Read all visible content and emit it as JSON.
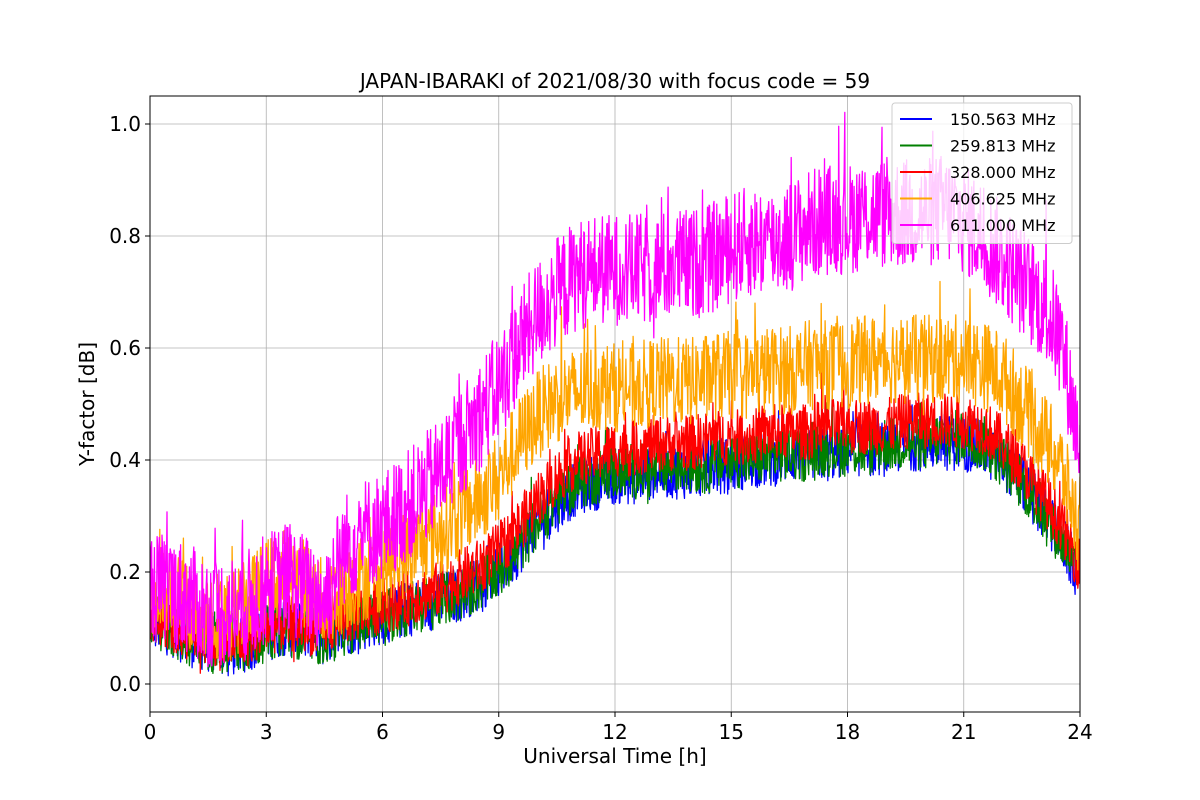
{
  "chart_data": {
    "type": "line",
    "title": "JAPAN-IBARAKI of 2021/08/30 with focus code = 59",
    "xlabel": "Universal Time [h]",
    "ylabel": "Y-factor [dB]",
    "xlim": [
      0,
      24
    ],
    "ylim": [
      -0.05,
      1.05
    ],
    "xticks": [
      0,
      3,
      6,
      9,
      12,
      15,
      18,
      21,
      24
    ],
    "yticks": [
      0.0,
      0.2,
      0.4,
      0.6,
      0.8,
      1.0
    ],
    "xtick_labels": [
      "0",
      "3",
      "6",
      "9",
      "12",
      "15",
      "18",
      "21",
      "24"
    ],
    "ytick_labels": [
      "0.0",
      "0.2",
      "0.4",
      "0.6",
      "0.8",
      "1.0"
    ],
    "grid": true,
    "legend_position": "top-right",
    "x": [
      0,
      0.5,
      1,
      1.5,
      2,
      2.5,
      3,
      3.5,
      4,
      4.5,
      5,
      5.5,
      6,
      6.5,
      7,
      7.5,
      8,
      8.5,
      9,
      9.5,
      10,
      10.5,
      11,
      11.5,
      12,
      12.5,
      13,
      13.5,
      14,
      14.5,
      15,
      15.5,
      16,
      16.5,
      17,
      17.5,
      18,
      18.5,
      19,
      19.5,
      20,
      20.5,
      21,
      21.5,
      22,
      22.5,
      23,
      23.5,
      24
    ],
    "series": [
      {
        "name": "150.563 MHz",
        "color": "#0000ff",
        "center": [
          0.11,
          0.1,
          0.08,
          0.07,
          0.06,
          0.07,
          0.09,
          0.1,
          0.09,
          0.08,
          0.1,
          0.11,
          0.12,
          0.13,
          0.14,
          0.15,
          0.16,
          0.18,
          0.2,
          0.24,
          0.29,
          0.32,
          0.35,
          0.36,
          0.37,
          0.37,
          0.38,
          0.38,
          0.38,
          0.39,
          0.39,
          0.4,
          0.4,
          0.41,
          0.41,
          0.41,
          0.42,
          0.42,
          0.42,
          0.43,
          0.43,
          0.43,
          0.43,
          0.42,
          0.4,
          0.36,
          0.31,
          0.26,
          0.19
        ],
        "spread": [
          0.05,
          0.05,
          0.05,
          0.05,
          0.05,
          0.05,
          0.05,
          0.05,
          0.05,
          0.05,
          0.05,
          0.05,
          0.05,
          0.05,
          0.05,
          0.05,
          0.05,
          0.05,
          0.05,
          0.05,
          0.05,
          0.05,
          0.05,
          0.05,
          0.05,
          0.05,
          0.05,
          0.05,
          0.05,
          0.05,
          0.05,
          0.05,
          0.05,
          0.05,
          0.05,
          0.05,
          0.05,
          0.05,
          0.05,
          0.05,
          0.05,
          0.05,
          0.05,
          0.05,
          0.05,
          0.05,
          0.05,
          0.05,
          0.05
        ]
      },
      {
        "name": "259.813 MHz",
        "color": "#008000",
        "center": [
          0.11,
          0.1,
          0.08,
          0.07,
          0.06,
          0.07,
          0.09,
          0.1,
          0.09,
          0.08,
          0.1,
          0.11,
          0.12,
          0.13,
          0.14,
          0.15,
          0.16,
          0.18,
          0.2,
          0.24,
          0.29,
          0.33,
          0.36,
          0.37,
          0.38,
          0.38,
          0.38,
          0.39,
          0.39,
          0.39,
          0.4,
          0.4,
          0.41,
          0.41,
          0.41,
          0.42,
          0.42,
          0.42,
          0.43,
          0.43,
          0.43,
          0.44,
          0.44,
          0.43,
          0.4,
          0.36,
          0.31,
          0.26,
          0.19
        ],
        "spread": [
          0.05,
          0.05,
          0.05,
          0.05,
          0.05,
          0.05,
          0.05,
          0.05,
          0.05,
          0.05,
          0.05,
          0.05,
          0.05,
          0.05,
          0.05,
          0.05,
          0.05,
          0.05,
          0.05,
          0.05,
          0.05,
          0.05,
          0.05,
          0.05,
          0.05,
          0.05,
          0.05,
          0.05,
          0.05,
          0.05,
          0.05,
          0.05,
          0.05,
          0.05,
          0.05,
          0.05,
          0.05,
          0.05,
          0.05,
          0.05,
          0.05,
          0.05,
          0.05,
          0.05,
          0.05,
          0.05,
          0.05,
          0.05,
          0.05
        ]
      },
      {
        "name": "328.000 MHz",
        "color": "#ff0000",
        "center": [
          0.12,
          0.11,
          0.09,
          0.08,
          0.07,
          0.08,
          0.1,
          0.11,
          0.1,
          0.1,
          0.12,
          0.13,
          0.14,
          0.15,
          0.16,
          0.17,
          0.19,
          0.21,
          0.24,
          0.28,
          0.33,
          0.37,
          0.4,
          0.41,
          0.42,
          0.42,
          0.43,
          0.43,
          0.43,
          0.44,
          0.44,
          0.44,
          0.45,
          0.45,
          0.45,
          0.46,
          0.46,
          0.46,
          0.46,
          0.47,
          0.47,
          0.47,
          0.47,
          0.46,
          0.43,
          0.39,
          0.34,
          0.29,
          0.21
        ],
        "spread": [
          0.05,
          0.05,
          0.05,
          0.05,
          0.05,
          0.05,
          0.05,
          0.05,
          0.05,
          0.05,
          0.05,
          0.05,
          0.05,
          0.05,
          0.05,
          0.05,
          0.05,
          0.05,
          0.05,
          0.05,
          0.05,
          0.05,
          0.05,
          0.05,
          0.05,
          0.05,
          0.05,
          0.05,
          0.05,
          0.05,
          0.05,
          0.05,
          0.05,
          0.05,
          0.05,
          0.05,
          0.05,
          0.05,
          0.05,
          0.05,
          0.05,
          0.05,
          0.05,
          0.05,
          0.05,
          0.05,
          0.05,
          0.05,
          0.05
        ]
      },
      {
        "name": "406.625 MHz",
        "color": "#ffa500",
        "center": [
          0.15,
          0.16,
          0.14,
          0.13,
          0.12,
          0.14,
          0.18,
          0.2,
          0.18,
          0.14,
          0.17,
          0.19,
          0.21,
          0.23,
          0.25,
          0.27,
          0.3,
          0.33,
          0.37,
          0.43,
          0.48,
          0.51,
          0.52,
          0.53,
          0.53,
          0.53,
          0.54,
          0.54,
          0.54,
          0.55,
          0.55,
          0.55,
          0.56,
          0.56,
          0.57,
          0.57,
          0.57,
          0.58,
          0.58,
          0.58,
          0.58,
          0.58,
          0.58,
          0.57,
          0.55,
          0.5,
          0.45,
          0.39,
          0.27
        ],
        "spread": [
          0.08,
          0.08,
          0.08,
          0.08,
          0.08,
          0.08,
          0.08,
          0.08,
          0.08,
          0.08,
          0.08,
          0.08,
          0.08,
          0.08,
          0.08,
          0.08,
          0.08,
          0.08,
          0.08,
          0.08,
          0.08,
          0.08,
          0.08,
          0.08,
          0.08,
          0.08,
          0.08,
          0.08,
          0.08,
          0.08,
          0.08,
          0.08,
          0.08,
          0.08,
          0.08,
          0.08,
          0.08,
          0.08,
          0.08,
          0.08,
          0.08,
          0.08,
          0.08,
          0.08,
          0.08,
          0.08,
          0.08,
          0.08,
          0.08
        ]
      },
      {
        "name": "611.000 MHz",
        "color": "#ff00ff",
        "center": [
          0.17,
          0.17,
          0.15,
          0.13,
          0.13,
          0.14,
          0.17,
          0.19,
          0.17,
          0.15,
          0.24,
          0.27,
          0.28,
          0.31,
          0.34,
          0.38,
          0.43,
          0.48,
          0.53,
          0.6,
          0.66,
          0.7,
          0.73,
          0.74,
          0.74,
          0.74,
          0.74,
          0.75,
          0.75,
          0.76,
          0.78,
          0.79,
          0.79,
          0.8,
          0.82,
          0.83,
          0.83,
          0.84,
          0.84,
          0.84,
          0.84,
          0.85,
          0.83,
          0.8,
          0.76,
          0.72,
          0.68,
          0.62,
          0.42
        ],
        "spread": [
          0.1,
          0.1,
          0.1,
          0.1,
          0.1,
          0.1,
          0.1,
          0.1,
          0.1,
          0.1,
          0.1,
          0.1,
          0.1,
          0.1,
          0.1,
          0.1,
          0.1,
          0.1,
          0.1,
          0.1,
          0.1,
          0.1,
          0.1,
          0.1,
          0.1,
          0.1,
          0.1,
          0.1,
          0.1,
          0.1,
          0.1,
          0.1,
          0.1,
          0.1,
          0.1,
          0.1,
          0.1,
          0.1,
          0.1,
          0.1,
          0.1,
          0.1,
          0.1,
          0.1,
          0.1,
          0.1,
          0.1,
          0.1,
          0.1
        ]
      }
    ]
  }
}
